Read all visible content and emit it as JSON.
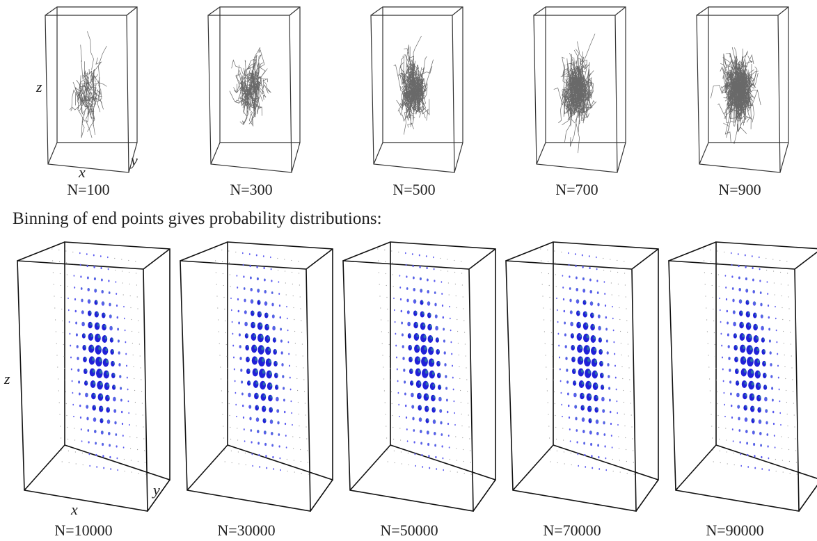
{
  "top_row": {
    "axis_labels": {
      "x": "x",
      "y": "y",
      "z": "z"
    },
    "panels": [
      {
        "label": "N=100"
      },
      {
        "label": "N=300"
      },
      {
        "label": "N=500"
      },
      {
        "label": "N=700"
      },
      {
        "label": "N=900"
      }
    ]
  },
  "caption": "Binning of end points gives probability distributions:",
  "bottom_row": {
    "axis_labels": {
      "x": "x",
      "y": "y",
      "z": "z"
    },
    "panels": [
      {
        "label": "N=10000"
      },
      {
        "label": "N=30000"
      },
      {
        "label": "N=50000"
      },
      {
        "label": "N=70000"
      },
      {
        "label": "N=90000"
      }
    ]
  }
}
